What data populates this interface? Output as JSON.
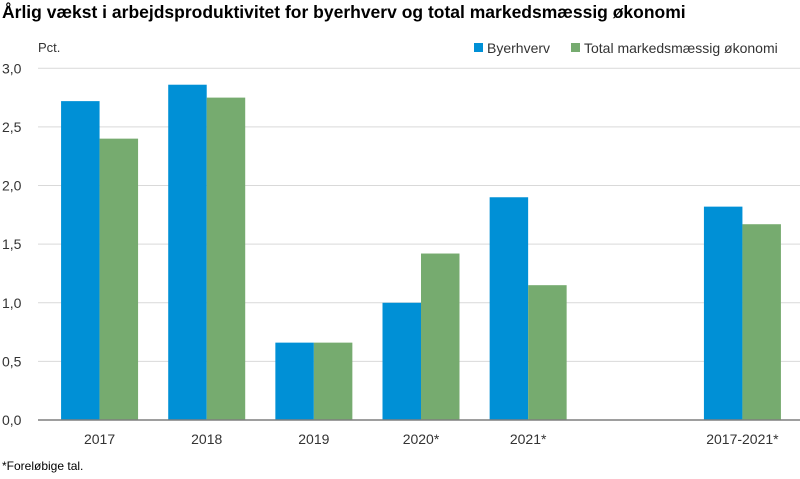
{
  "chart_data": {
    "type": "bar",
    "title": "Årlig vækst i arbejdsproduktivitet for byerhverv og total markedsmæssig økonomi",
    "ylabel": "Pct.",
    "categories": [
      "2017",
      "2018",
      "2019",
      "2020*",
      "2021*",
      "",
      "2017-2021*"
    ],
    "series": [
      {
        "name": "Byerhverv",
        "color": "#0090d6",
        "values": [
          2.72,
          2.86,
          0.66,
          1.0,
          1.9,
          null,
          1.82
        ]
      },
      {
        "name": "Total markedsmæssig økonomi",
        "color": "#76ab6f",
        "values": [
          2.4,
          2.75,
          0.66,
          1.42,
          1.15,
          null,
          1.67
        ]
      }
    ],
    "ylim": [
      0,
      3
    ],
    "yticks": [
      "0,0",
      "0,5",
      "1,0",
      "1,5",
      "2,0",
      "2,5",
      "3,0"
    ],
    "grid": true,
    "legend": "top-right",
    "footnote": "*Foreløbige tal."
  }
}
